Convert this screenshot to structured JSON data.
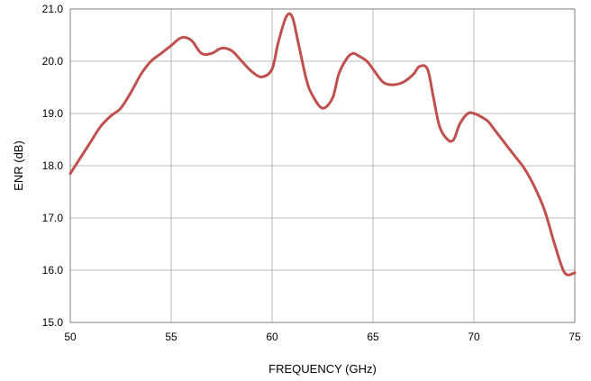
{
  "chart_data": {
    "type": "line",
    "title": "",
    "xlabel": "FREQUENCY (GHz)",
    "ylabel": "ENR (dB)",
    "xlim": [
      50,
      75
    ],
    "ylim": [
      15.0,
      21.0
    ],
    "x_ticks": [
      "50",
      "55",
      "60",
      "65",
      "70",
      "75"
    ],
    "y_ticks": [
      "15.0",
      "16.0",
      "17.0",
      "18.0",
      "19.0",
      "20.0",
      "21.0"
    ],
    "grid": true,
    "legend": "none",
    "series": [
      {
        "color": "#c0504d",
        "x": [
          50.0,
          50.5,
          51.0,
          51.5,
          52.0,
          52.5,
          53.0,
          53.5,
          54.0,
          54.5,
          55.0,
          55.5,
          56.0,
          56.5,
          57.0,
          57.5,
          58.0,
          58.5,
          59.0,
          59.5,
          60.0,
          60.3,
          60.7,
          61.0,
          61.3,
          61.7,
          62.0,
          62.5,
          63.0,
          63.3,
          63.7,
          64.0,
          64.3,
          64.7,
          65.0,
          65.5,
          66.0,
          66.5,
          67.0,
          67.3,
          67.7,
          68.0,
          68.3,
          68.7,
          69.0,
          69.3,
          69.7,
          70.0,
          70.3,
          70.7,
          71.0,
          71.5,
          72.0,
          72.5,
          73.0,
          73.5,
          74.0,
          74.5,
          75.0
        ],
        "y": [
          17.85,
          18.15,
          18.45,
          18.75,
          18.95,
          19.1,
          19.4,
          19.75,
          20.0,
          20.15,
          20.3,
          20.45,
          20.4,
          20.15,
          20.15,
          20.25,
          20.2,
          20.0,
          19.8,
          19.7,
          19.85,
          20.35,
          20.85,
          20.85,
          20.35,
          19.65,
          19.35,
          19.1,
          19.3,
          19.75,
          20.05,
          20.15,
          20.1,
          20.0,
          19.85,
          19.6,
          19.55,
          19.6,
          19.75,
          19.9,
          19.85,
          19.3,
          18.75,
          18.5,
          18.5,
          18.8,
          19.0,
          19.0,
          18.95,
          18.85,
          18.7,
          18.45,
          18.2,
          17.95,
          17.6,
          17.15,
          16.5,
          15.95,
          15.95
        ]
      }
    ]
  }
}
